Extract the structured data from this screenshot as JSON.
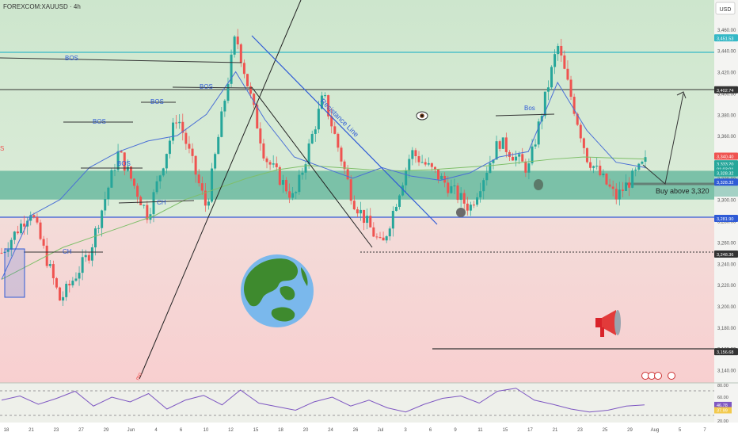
{
  "header": {
    "symbol": "FOREXCOM:XAUUSD · 4h",
    "currency": "USD"
  },
  "colors": {
    "up": "#26a69a",
    "down": "#ef5350",
    "zone": "#2e9e82",
    "upper_bg": "#cfe7cf",
    "lower_bg": "#f7d2d2",
    "ma_fast": "#4a6fd6",
    "ma_slow": "#7fbf6a",
    "rsi": "#7e57c2",
    "axis_text": "#555555",
    "cyan_line": "#35b8c6",
    "blue_line": "#2f5bd6"
  },
  "chart_data": {
    "type": "candlestick",
    "ylim": [
      3130,
      3480
    ],
    "x_ticks": [
      "18",
      "21",
      "23",
      "27",
      "29",
      "Jun",
      "4",
      "6",
      "10",
      "12",
      "15",
      "18",
      "20",
      "24",
      "26",
      "Jul",
      "3",
      "6",
      "9",
      "11",
      "15",
      "17",
      "21",
      "23",
      "25",
      "29",
      "Aug",
      "5",
      "7"
    ],
    "y_ticks": [
      "3,460.00",
      "3,440.00",
      "3,420.00",
      "3,400.00",
      "3,380.00",
      "3,360.00",
      "3,340.00",
      "3,320.00",
      "3,300.00",
      "3,280.00",
      "3,260.00",
      "3,240.00",
      "3,220.00",
      "3,200.00",
      "3,180.00",
      "3,160.00",
      "3,140.00"
    ],
    "y_tick_values": [
      3460,
      3440,
      3420,
      3400,
      3380,
      3360,
      3340,
      3320,
      3300,
      3280,
      3260,
      3240,
      3220,
      3200,
      3180,
      3160,
      3140
    ],
    "key_levels": [
      {
        "label": "3,451.53",
        "value": 3451.5,
        "color": "#35b8c6"
      },
      {
        "label": "3,402.74",
        "value": 3402.7,
        "color": "#333333"
      },
      {
        "label": "3,340.40",
        "value": 3340.4,
        "color": "#ef5350"
      },
      {
        "label": "3,333.20",
        "value": 3333.2,
        "color": "#26a69a"
      },
      {
        "label": "01:03:01",
        "value": 3328.5,
        "color": "#26a69a"
      },
      {
        "label": "3,328.32",
        "value": 3324.6,
        "color": "#26a69a"
      },
      {
        "label": "3,328.32",
        "value": 3316.0,
        "color": "#2f5bd6"
      },
      {
        "label": "3,281.90",
        "value": 3281.9,
        "color": "#2f5bd6"
      },
      {
        "label": "3,248.36",
        "value": 3248.4,
        "color": "#333333"
      },
      {
        "label": "3,156.68",
        "value": 3156.7,
        "color": "#333333"
      }
    ],
    "zone": {
      "from": 3300,
      "to": 3327
    },
    "swing_points": [
      3250,
      3290,
      3205,
      3250,
      3345,
      3285,
      3380,
      3292,
      3455,
      3340,
      3300,
      3398,
      3300,
      3255,
      3345,
      3320,
      3292,
      3355,
      3328,
      3445,
      3340,
      3302,
      3335
    ],
    "ma_fast_points": [
      3225,
      3285,
      3300,
      3330,
      3345,
      3355,
      3360,
      3380,
      3420,
      3375,
      3340,
      3330,
      3320,
      3330,
      3322,
      3318,
      3325,
      3340,
      3345,
      3410,
      3365,
      3335,
      3330
    ],
    "ma_slow_points": [
      3225,
      3240,
      3255,
      3265,
      3275,
      3285,
      3300,
      3310,
      3320,
      3328,
      3332,
      3330,
      3328,
      3327,
      3328,
      3330,
      3332,
      3335,
      3338,
      3340,
      3339,
      3338
    ],
    "labels": {
      "bos": [
        "BOS",
        "BOS",
        "BOS",
        "BOS",
        "BOS",
        "Bos"
      ],
      "ch": [
        "CH",
        "CH"
      ],
      "resistance": "Resistance Line",
      "buy_note": "Buy above 3,320",
      "left_s": "S",
      "ms_tag": "mo"
    },
    "rsi": {
      "ylim": [
        20,
        80
      ],
      "ticks": [
        "80.00",
        "60.00",
        "40.00",
        "20.00"
      ],
      "tick_values": [
        80,
        60,
        40,
        20
      ],
      "values": [
        55,
        62,
        48,
        58,
        70,
        45,
        60,
        52,
        66,
        40,
        55,
        63,
        47,
        72,
        50,
        44,
        38,
        52,
        60,
        45,
        55,
        42,
        35,
        48,
        58,
        62,
        50,
        70,
        75,
        55,
        48,
        40,
        35,
        38,
        45,
        47
      ],
      "current_labels": [
        "46.78",
        "37.99"
      ],
      "current_values": [
        46.78,
        37.99
      ],
      "current_colors": [
        "#7e57c2",
        "#f2c94c"
      ]
    }
  }
}
